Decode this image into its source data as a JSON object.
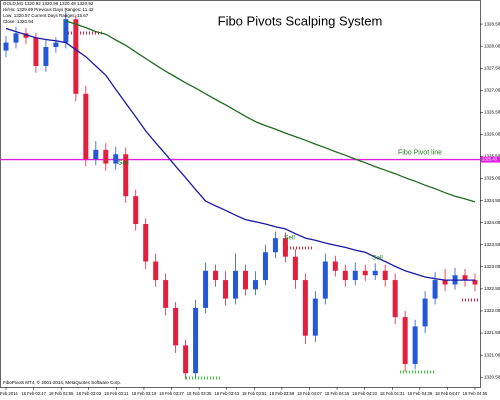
{
  "chart_data": {
    "type": "candlestick",
    "title": "Fibo Pivots Scalping System",
    "info": [
      "GOLD,M1 1320.92 1320.96 1320.49 1320.92",
      "Hi/Ho: 1329.69   Previous Days Ranges: 11.42",
      "Low: 1320.57   Current Days Ranges: 15.67",
      "Close: 1320.94"
    ],
    "footer": "FiboPivots MT4, © 2001-2014, MetaQuotes Software Corp.",
    "annotations": [
      "Sell",
      "Sell",
      "Sell"
    ],
    "pivot": {
      "value": 1325.43,
      "label": "Fibo Pivot line",
      "color": "#e020e0"
    },
    "x_labels": [
      "18 Feb 2014",
      "18 Feb 02:47",
      "18 Feb 02:55",
      "18 Feb 03:03",
      "18 Feb 03:11",
      "18 Feb 03:19",
      "18 Feb 03:27",
      "18 Feb 03:35",
      "18 Feb 03:43",
      "18 Feb 03:51",
      "18 Feb 03:59",
      "18 Feb 04:07",
      "18 Feb 04:15",
      "18 Feb 04:23",
      "18 Feb 04:31",
      "18 Feb 04:39",
      "18 Feb 04:47",
      "18 Feb 04:55"
    ],
    "up_color": "#2458d6",
    "down_color": "#e0203c",
    "open": [
      1327.9,
      1328.08,
      1328.29,
      1328.19,
      1327.55,
      1327.98,
      1328.08,
      1328.61,
      1326.92,
      1325.44,
      1325.65,
      1325.34,
      1325.55,
      1324.6,
      1323.97,
      1323.12,
      1322.7,
      1322.07,
      1321.22,
      1320.59,
      1322.07,
      1322.91,
      1322.7,
      1322.28,
      1322.91,
      1322.49,
      1322.7,
      1323.33,
      1323.65,
      1323.23,
      1322.7,
      1321.44,
      1322.28,
      1323.12,
      1322.91,
      1322.7,
      1322.91,
      1322.81,
      1322.91,
      1322.7,
      1321.86,
      1320.8,
      1321.65,
      1322.28,
      1322.7,
      1322.6,
      1322.81,
      1322.7
    ],
    "high": [
      1328.23,
      1328.44,
      1328.41,
      1328.3,
      1328.15,
      1328.2,
      1328.8,
      1328.7,
      1327.1,
      1325.85,
      1325.8,
      1325.72,
      1325.7,
      1324.75,
      1324.1,
      1323.3,
      1322.85,
      1322.2,
      1321.35,
      1322.25,
      1323.1,
      1323.05,
      1322.9,
      1323.3,
      1323.05,
      1322.9,
      1323.5,
      1323.8,
      1323.78,
      1323.4,
      1322.85,
      1322.45,
      1323.3,
      1323.25,
      1323.05,
      1323.1,
      1323.05,
      1323.08,
      1323.05,
      1322.85,
      1322.0,
      1321.8,
      1322.45,
      1322.88,
      1322.95,
      1322.98,
      1322.95,
      1322.85
    ],
    "low": [
      1327.75,
      1327.95,
      1328.05,
      1327.4,
      1327.42,
      1327.85,
      1327.95,
      1326.75,
      1325.28,
      1325.3,
      1325.18,
      1325.2,
      1324.45,
      1323.82,
      1322.95,
      1322.55,
      1321.9,
      1321.05,
      1320.45,
      1320.48,
      1321.95,
      1322.55,
      1322.12,
      1322.15,
      1322.35,
      1322.36,
      1322.58,
      1323.2,
      1323.1,
      1322.5,
      1321.25,
      1321.3,
      1322.15,
      1322.78,
      1322.55,
      1322.58,
      1322.68,
      1322.7,
      1322.55,
      1321.7,
      1320.62,
      1320.68,
      1321.5,
      1322.15,
      1322.45,
      1322.48,
      1322.55,
      1322.45
    ],
    "close": [
      1328.08,
      1328.29,
      1328.19,
      1327.55,
      1327.98,
      1328.08,
      1328.61,
      1326.92,
      1325.44,
      1325.65,
      1325.34,
      1325.55,
      1324.6,
      1323.97,
      1323.12,
      1322.7,
      1322.07,
      1321.22,
      1320.59,
      1322.07,
      1322.91,
      1322.7,
      1322.28,
      1322.91,
      1322.49,
      1322.7,
      1323.33,
      1323.65,
      1323.23,
      1322.7,
      1321.44,
      1322.28,
      1323.12,
      1322.91,
      1322.7,
      1322.91,
      1322.81,
      1322.91,
      1322.7,
      1321.86,
      1320.8,
      1321.65,
      1322.28,
      1322.7,
      1322.6,
      1322.81,
      1322.7,
      1322.6
    ],
    "series": [
      {
        "color": "#1a1aa8",
        "values": [
          1328.4,
          1328.33,
          1328.26,
          1328.19,
          1328.15,
          1328.12,
          1328.08,
          1327.92,
          1327.76,
          1327.55,
          1327.34,
          1327.02,
          1326.71,
          1326.4,
          1326.08,
          1325.81,
          1325.55,
          1325.28,
          1325.02,
          1324.75,
          1324.49,
          1324.38,
          1324.28,
          1324.17,
          1324.07,
          1324.02,
          1323.97,
          1323.91,
          1323.86,
          1323.75,
          1323.65,
          1323.6,
          1323.54,
          1323.49,
          1323.44,
          1323.38,
          1323.33,
          1323.22,
          1323.12,
          1323.01,
          1322.91,
          1322.84,
          1322.77,
          1322.73,
          1322.7,
          1322.7,
          1322.7,
          1322.7
        ]
      },
      {
        "color": "#1f6b1f",
        "values": [
          null,
          null,
          null,
          null,
          null,
          null,
          1328.57,
          1328.5,
          1328.42,
          1328.33,
          1328.27,
          1328.14,
          1328.02,
          1327.87,
          1327.72,
          1327.57,
          1327.43,
          1327.3,
          1327.17,
          1327.05,
          1326.92,
          1326.79,
          1326.67,
          1326.54,
          1326.41,
          1326.29,
          1326.2,
          1326.12,
          1326.03,
          1325.95,
          1325.87,
          1325.78,
          1325.7,
          1325.61,
          1325.53,
          1325.44,
          1325.36,
          1325.27,
          1325.19,
          1325.11,
          1325.02,
          1324.94,
          1324.85,
          1324.77,
          1324.68,
          1324.6,
          1324.54,
          1324.47
        ]
      }
    ],
    "ylim": [
      1320.3,
      1329.0
    ],
    "yticks": [
      {
        "value": 1320.5,
        "label": "1320.50"
      },
      {
        "value": 1321.0,
        "label": "1321.00"
      },
      {
        "value": 1321.5,
        "label": "1321.50"
      },
      {
        "value": 1322.0,
        "label": "1322.00"
      },
      {
        "value": 1322.5,
        "label": "1322.50"
      },
      {
        "value": 1323.0,
        "label": "1323.00"
      },
      {
        "value": 1323.5,
        "label": "1323.50"
      },
      {
        "value": 1324.0,
        "label": "1324.00"
      },
      {
        "value": 1324.5,
        "label": "1324.50"
      },
      {
        "value": 1325.0,
        "label": "1325.00"
      },
      {
        "value": 1325.5,
        "label": "1325.50"
      },
      {
        "value": 1326.0,
        "label": "1326.00"
      },
      {
        "value": 1326.5,
        "label": "1326.50"
      },
      {
        "value": 1327.0,
        "label": "1327.00"
      },
      {
        "value": 1327.5,
        "label": "1327.50"
      },
      {
        "value": 1328.0,
        "label": "1328.00"
      },
      {
        "value": 1328.5,
        "label": "1328.50"
      }
    ]
  }
}
